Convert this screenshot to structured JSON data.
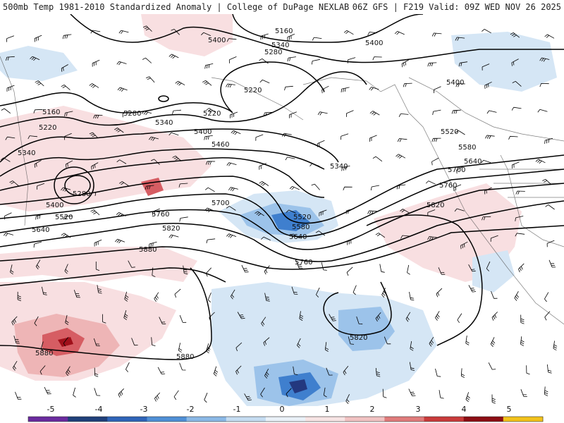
{
  "header": {
    "left": "500mb Temp 1981-2010 Standardized Anomaly | College of DuPage NEXLAB",
    "right": "06Z GFS | F219 Valid: 09Z WED NOV 26 2025"
  },
  "contours": {
    "labels": [
      "5160",
      "5220",
      "5280",
      "5340",
      "5400",
      "5460",
      "5520",
      "5580",
      "5640",
      "5700",
      "5760",
      "5820",
      "5880"
    ]
  },
  "colorbar": {
    "ticks": [
      "-5",
      "-4",
      "-3",
      "-2",
      "-1",
      "0",
      "1",
      "2",
      "3",
      "4",
      "5"
    ],
    "colors": [
      "#6a2a9e",
      "#1f3f7a",
      "#2e64b8",
      "#4f8fd6",
      "#8ab8e6",
      "#c5dcf1",
      "#eaf1f8",
      "#f7e4e4",
      "#f1c2c2",
      "#e07b7b",
      "#c93a3a",
      "#8c0d13",
      "#f2c21a"
    ]
  },
  "anomaly_colors": {
    "neg_light": "#d5e6f5",
    "neg_mid": "#9cc3ea",
    "neg_strong": "#3f7fce",
    "neg_deep": "#23387f",
    "pos_light": "#f8dfe1",
    "pos_mid": "#eeb5b6",
    "pos_strong": "#d65d63",
    "pos_deep": "#a0101a"
  }
}
